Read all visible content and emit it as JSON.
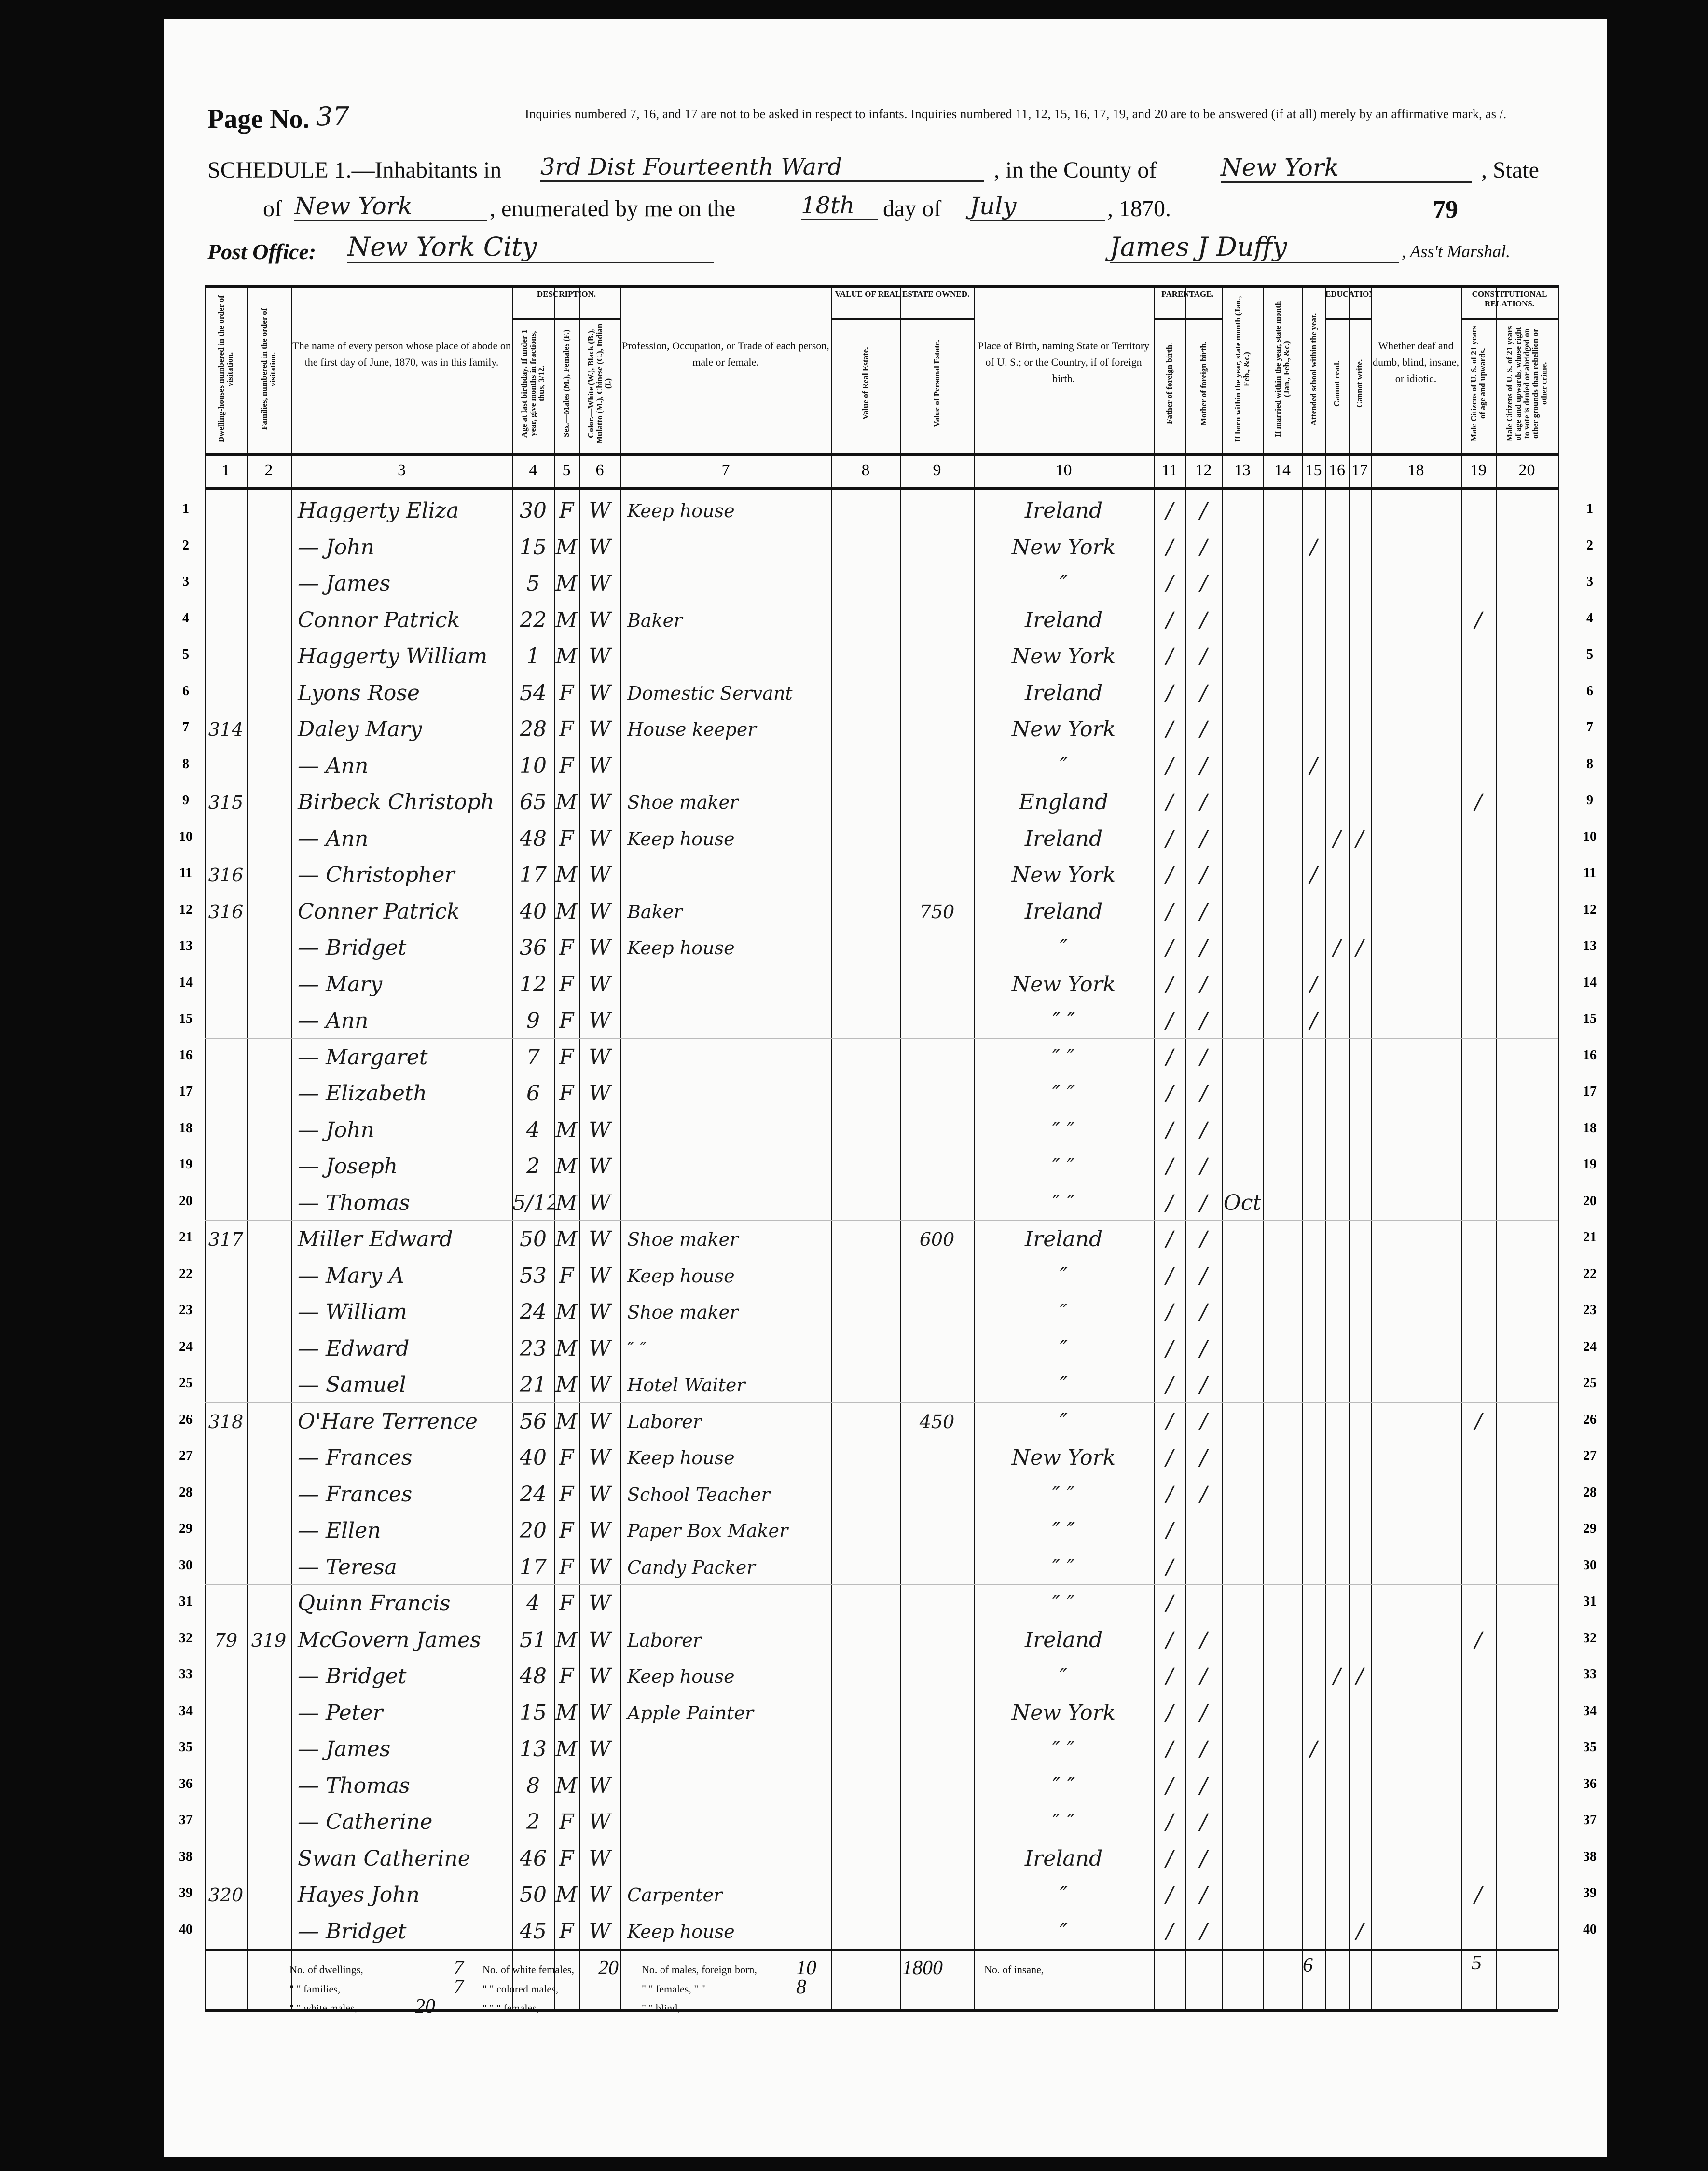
{
  "header": {
    "page_label": "Page No.",
    "page_no": "37",
    "instructions": "Inquiries numbered 7, 16, and 17 are not to be asked in respect to infants. Inquiries numbered 11, 12, 15, 16, 17, 19, and 20 are to be answered (if at all) merely by an affirmative mark, as /.",
    "schedule_label": "SCHEDULE 1.—Inhabitants in",
    "district": "3rd Dist Fourteenth Ward",
    "county_label": ", in the County of",
    "county": "New York",
    "state_label": ", State",
    "of_label": "of",
    "state": "New York",
    "enumerated_label": ", enumerated by me on the",
    "day": "18th",
    "day_of_label": "day of",
    "month": "July",
    "year": ", 1870.",
    "stamp_number": "79",
    "post_office_label": "Post Office:",
    "post_office": "New York City",
    "marshal": "James J Duffy",
    "marshal_label": ", Ass't Marshal."
  },
  "column_headers": [
    "Dwelling-houses numbered in the order of visitation.",
    "Families, numbered in the order of visitation.",
    "The name of every person whose place of abode on the first day of June, 1870, was in this family.",
    "Age at last birthday. If under 1 year, give months in fractions, thus, 3/12.",
    "Sex.—Males (M.), Females (F.)",
    "Color.—White (W.), Black (B.), Mulatto (M.), Chinese (C.), Indian (I.)",
    "Profession, Occupation, or Trade of each person, male or female.",
    "Value of Real Estate.",
    "Value of Personal Estate.",
    "Place of Birth, naming State or Territory of U. S.; or the Country, if of foreign birth.",
    "Father of foreign birth.",
    "Mother of foreign birth.",
    "If born within the year, state month (Jan., Feb., &c.)",
    "If married within the year, state month (Jan., Feb., &c.)",
    "Attended school within the year.",
    "Cannot read.",
    "Cannot write.",
    "Whether deaf and dumb, blind, insane, or idiotic.",
    "Male Citizens of U. S. of 21 years of age and upwards.",
    "Male Citizens of U. S. of 21 years of age and upwards, whose right to vote is denied or abridged on other grounds than rebellion or other crime."
  ],
  "group_headers": {
    "description": "DESCRIPTION.",
    "value": "VALUE OF REAL ESTATE OWNED.",
    "parentage": "PARENTAGE.",
    "education": "EDUCATION.",
    "constitutional": "CONSTITUTIONAL RELATIONS."
  },
  "column_numbers": [
    "1",
    "2",
    "3",
    "4",
    "5",
    "6",
    "7",
    "8",
    "9",
    "10",
    "11",
    "12",
    "13",
    "14",
    "15",
    "16",
    "17",
    "18",
    "19",
    "20"
  ],
  "rows": [
    [
      "",
      "",
      "Haggerty Eliza",
      "30",
      "F",
      "W",
      "Keep house",
      "",
      "",
      "Ireland",
      "/",
      "/",
      "",
      "",
      "",
      "",
      "",
      "",
      "",
      ""
    ],
    [
      "",
      "",
      "— John",
      "15",
      "M",
      "W",
      "",
      "",
      "",
      "New York",
      "/",
      "/",
      "",
      "",
      "/",
      "",
      "",
      "",
      "",
      ""
    ],
    [
      "",
      "",
      "— James",
      "5",
      "M",
      "W",
      "",
      "",
      "",
      "″",
      "/",
      "/",
      "",
      "",
      "",
      "",
      "",
      "",
      "",
      ""
    ],
    [
      "",
      "",
      "Connor Patrick",
      "22",
      "M",
      "W",
      "Baker",
      "",
      "",
      "Ireland",
      "/",
      "/",
      "",
      "",
      "",
      "",
      "",
      "",
      "/",
      ""
    ],
    [
      "",
      "",
      "Haggerty William",
      "1",
      "M",
      "W",
      "",
      "",
      "",
      "New York",
      "/",
      "/",
      "",
      "",
      "",
      "",
      "",
      "",
      "",
      ""
    ],
    [
      "",
      "",
      "Lyons Rose",
      "54",
      "F",
      "W",
      "Domestic Servant",
      "",
      "",
      "Ireland",
      "/",
      "/",
      "",
      "",
      "",
      "",
      "",
      "",
      "",
      ""
    ],
    [
      "314",
      "",
      "Daley Mary",
      "28",
      "F",
      "W",
      "House keeper",
      "",
      "",
      "New York",
      "/",
      "/",
      "",
      "",
      "",
      "",
      "",
      "",
      "",
      ""
    ],
    [
      "",
      "",
      "— Ann",
      "10",
      "F",
      "W",
      "",
      "",
      "",
      "″",
      "/",
      "/",
      "",
      "",
      "/",
      "",
      "",
      "",
      "",
      ""
    ],
    [
      "315",
      "",
      "Birbeck Christoph",
      "65",
      "M",
      "W",
      "Shoe maker",
      "",
      "",
      "England",
      "/",
      "/",
      "",
      "",
      "",
      "",
      "",
      "",
      "/",
      ""
    ],
    [
      "",
      "",
      "— Ann",
      "48",
      "F",
      "W",
      "Keep house",
      "",
      "",
      "Ireland",
      "/",
      "/",
      "",
      "",
      "",
      "/",
      "/",
      "",
      "",
      ""
    ],
    [
      "316",
      "",
      "— Christopher",
      "17",
      "M",
      "W",
      "",
      "",
      "",
      "New York",
      "/",
      "/",
      "",
      "",
      "/",
      "",
      "",
      "",
      "",
      ""
    ],
    [
      "316",
      "",
      "Conner Patrick",
      "40",
      "M",
      "W",
      "Baker",
      "",
      "750",
      "Ireland",
      "/",
      "/",
      "",
      "",
      "",
      "",
      "",
      "",
      "",
      ""
    ],
    [
      "",
      "",
      "— Bridget",
      "36",
      "F",
      "W",
      "Keep house",
      "",
      "",
      "″",
      "/",
      "/",
      "",
      "",
      "",
      "/",
      "/",
      "",
      "",
      ""
    ],
    [
      "",
      "",
      "— Mary",
      "12",
      "F",
      "W",
      "",
      "",
      "",
      "New York",
      "/",
      "/",
      "",
      "",
      "/",
      "",
      "",
      "",
      "",
      ""
    ],
    [
      "",
      "",
      "— Ann",
      "9",
      "F",
      "W",
      "",
      "",
      "",
      "″ ″",
      "/",
      "/",
      "",
      "",
      "/",
      "",
      "",
      "",
      "",
      ""
    ],
    [
      "",
      "",
      "— Margaret",
      "7",
      "F",
      "W",
      "",
      "",
      "",
      "″ ″",
      "/",
      "/",
      "",
      "",
      "",
      "",
      "",
      "",
      "",
      ""
    ],
    [
      "",
      "",
      "— Elizabeth",
      "6",
      "F",
      "W",
      "",
      "",
      "",
      "″ ″",
      "/",
      "/",
      "",
      "",
      "",
      "",
      "",
      "",
      "",
      ""
    ],
    [
      "",
      "",
      "— John",
      "4",
      "M",
      "W",
      "",
      "",
      "",
      "″ ″",
      "/",
      "/",
      "",
      "",
      "",
      "",
      "",
      "",
      "",
      ""
    ],
    [
      "",
      "",
      "— Joseph",
      "2",
      "M",
      "W",
      "",
      "",
      "",
      "″ ″",
      "/",
      "/",
      "",
      "",
      "",
      "",
      "",
      "",
      "",
      ""
    ],
    [
      "",
      "",
      "— Thomas",
      "5/12",
      "M",
      "W",
      "",
      "",
      "",
      "″ ″",
      "/",
      "/",
      "Oct",
      "",
      "",
      "",
      "",
      "",
      "",
      ""
    ],
    [
      "317",
      "",
      "Miller Edward",
      "50",
      "M",
      "W",
      "Shoe maker",
      "",
      "600",
      "Ireland",
      "/",
      "/",
      "",
      "",
      "",
      "",
      "",
      "",
      "",
      ""
    ],
    [
      "",
      "",
      "— Mary A",
      "53",
      "F",
      "W",
      "Keep house",
      "",
      "",
      "″",
      "/",
      "/",
      "",
      "",
      "",
      "",
      "",
      "",
      "",
      ""
    ],
    [
      "",
      "",
      "— William",
      "24",
      "M",
      "W",
      "Shoe maker",
      "",
      "",
      "″",
      "/",
      "/",
      "",
      "",
      "",
      "",
      "",
      "",
      "",
      ""
    ],
    [
      "",
      "",
      "— Edward",
      "23",
      "M",
      "W",
      "″ ″",
      "",
      "",
      "″",
      "/",
      "/",
      "",
      "",
      "",
      "",
      "",
      "",
      "",
      ""
    ],
    [
      "",
      "",
      "— Samuel",
      "21",
      "M",
      "W",
      "Hotel Waiter",
      "",
      "",
      "″",
      "/",
      "/",
      "",
      "",
      "",
      "",
      "",
      "",
      "",
      ""
    ],
    [
      "318",
      "",
      "O'Hare Terrence",
      "56",
      "M",
      "W",
      "Laborer",
      "",
      "450",
      "″",
      "/",
      "/",
      "",
      "",
      "",
      "",
      "",
      "",
      "/",
      ""
    ],
    [
      "",
      "",
      "— Frances",
      "40",
      "F",
      "W",
      "Keep house",
      "",
      "",
      "New York",
      "/",
      "/",
      "",
      "",
      "",
      "",
      "",
      "",
      "",
      ""
    ],
    [
      "",
      "",
      "— Frances",
      "24",
      "F",
      "W",
      "School Teacher",
      "",
      "",
      "″ ″",
      "/",
      "/",
      "",
      "",
      "",
      "",
      "",
      "",
      "",
      ""
    ],
    [
      "",
      "",
      "— Ellen",
      "20",
      "F",
      "W",
      "Paper Box Maker",
      "",
      "",
      "″ ″",
      "/",
      "",
      "",
      "",
      "",
      "",
      "",
      "",
      "",
      ""
    ],
    [
      "",
      "",
      "— Teresa",
      "17",
      "F",
      "W",
      "Candy Packer",
      "",
      "",
      "″ ″",
      "/",
      "",
      "",
      "",
      "",
      "",
      "",
      "",
      "",
      ""
    ],
    [
      "",
      "",
      "Quinn Francis",
      "4",
      "F",
      "W",
      "",
      "",
      "",
      "″ ″",
      "/",
      "",
      "",
      "",
      "",
      "",
      "",
      "",
      "",
      ""
    ],
    [
      "79",
      "319",
      "McGovern James",
      "51",
      "M",
      "W",
      "Laborer",
      "",
      "",
      "Ireland",
      "/",
      "/",
      "",
      "",
      "",
      "",
      "",
      "",
      "/",
      ""
    ],
    [
      "",
      "",
      "— Bridget",
      "48",
      "F",
      "W",
      "Keep house",
      "",
      "",
      "″",
      "/",
      "/",
      "",
      "",
      "",
      "/",
      "/",
      "",
      "",
      ""
    ],
    [
      "",
      "",
      "— Peter",
      "15",
      "M",
      "W",
      "Apple Painter",
      "",
      "",
      "New York",
      "/",
      "/",
      "",
      "",
      "",
      "",
      "",
      "",
      "",
      ""
    ],
    [
      "",
      "",
      "— James",
      "13",
      "M",
      "W",
      "",
      "",
      "",
      "″ ″",
      "/",
      "/",
      "",
      "",
      "/",
      "",
      "",
      "",
      "",
      ""
    ],
    [
      "",
      "",
      "— Thomas",
      "8",
      "M",
      "W",
      "",
      "",
      "",
      "″ ″",
      "/",
      "/",
      "",
      "",
      "",
      "",
      "",
      "",
      "",
      ""
    ],
    [
      "",
      "",
      "— Catherine",
      "2",
      "F",
      "W",
      "",
      "",
      "",
      "″ ″",
      "/",
      "/",
      "",
      "",
      "",
      "",
      "",
      "",
      "",
      ""
    ],
    [
      "",
      "",
      "Swan Catherine",
      "46",
      "F",
      "W",
      "",
      "",
      "",
      "Ireland",
      "/",
      "/",
      "",
      "",
      "",
      "",
      "",
      "",
      "",
      ""
    ],
    [
      "320",
      "",
      "Hayes John",
      "50",
      "M",
      "W",
      "Carpenter",
      "",
      "",
      "″",
      "/",
      "/",
      "",
      "",
      "",
      "",
      "",
      "",
      "/",
      ""
    ],
    [
      "",
      "",
      "— Bridget",
      "45",
      "F",
      "W",
      "Keep house",
      "",
      "",
      "″",
      "/",
      "/",
      "",
      "",
      "",
      "",
      "/",
      "",
      "",
      ""
    ]
  ],
  "footer": {
    "dwellings_label": "No. of dwellings,",
    "dwellings": "7",
    "white_females_label": "No. of white females,",
    "white_females": "20",
    "males_foreign_label": "No. of males, foreign born,",
    "males_foreign": "10",
    "families_label": "\" \" families,",
    "families": "7",
    "colored_males_label": "\" \" colored males,",
    "colored_males": "",
    "females_foreign_label": "\" \" females, \" \"",
    "females_foreign": "8",
    "white_males_label": "\" \" white males,",
    "white_males": "20",
    "colored_females_label": "\" \" \" females,",
    "colored_females": "",
    "blind_label": "\" \" blind,",
    "blind": "",
    "personal_total": "1800",
    "insane_label": "No. of insane,",
    "school_total": "6",
    "citizens_total": "5"
  }
}
